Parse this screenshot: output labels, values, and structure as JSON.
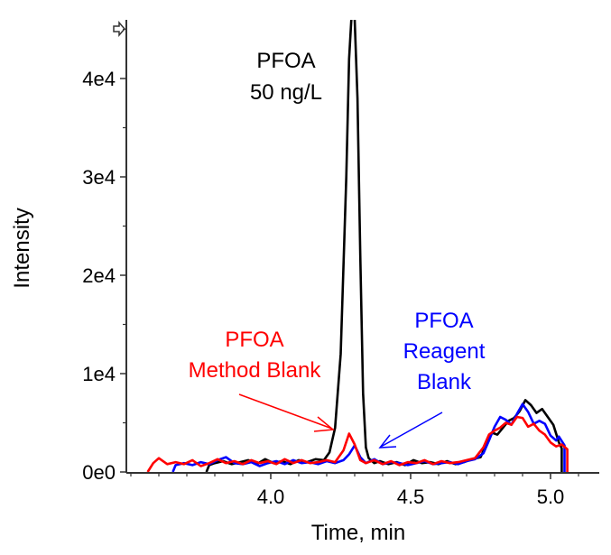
{
  "chart_data": {
    "type": "line",
    "title": "",
    "xlabel": "Time, min",
    "ylabel": "Intensity",
    "xlim": [
      3.5,
      5.17
    ],
    "ylim": [
      0,
      46000
    ],
    "x_ticks": [
      4.0,
      4.5,
      5.0
    ],
    "x_tick_labels": [
      "4.0",
      "4.5",
      "5.0"
    ],
    "x_minor_step": 0.1,
    "y_ticks": [
      0,
      10000,
      20000,
      30000,
      40000
    ],
    "y_tick_labels": [
      "0e0",
      "1e4",
      "2e4",
      "3e4",
      "4e4"
    ],
    "y_minor_step": 5000,
    "grid": false,
    "series": [
      {
        "name": "PFOA 50 ng/L",
        "color": "#000000",
        "x": [
          3.77,
          3.78,
          3.8,
          3.83,
          3.86,
          3.89,
          3.92,
          3.95,
          3.98,
          4.01,
          4.04,
          4.07,
          4.1,
          4.13,
          4.16,
          4.19,
          4.21,
          4.23,
          4.25,
          4.27,
          4.28,
          4.29,
          4.3,
          4.31,
          4.32,
          4.33,
          4.34,
          4.35,
          4.37,
          4.39,
          4.42,
          4.45,
          4.48,
          4.51,
          4.54,
          4.57,
          4.6,
          4.63,
          4.66,
          4.69,
          4.72,
          4.75,
          4.77,
          4.79,
          4.81,
          4.83,
          4.85,
          4.87,
          4.89,
          4.91,
          4.93,
          4.95,
          4.97,
          4.99,
          5.01,
          5.03,
          5.04,
          5.04
        ],
        "y": [
          0,
          700,
          900,
          1100,
          800,
          1000,
          1200,
          800,
          1300,
          900,
          1100,
          800,
          1200,
          1000,
          1300,
          1200,
          2000,
          4500,
          12000,
          30000,
          42000,
          47000,
          46000,
          38000,
          22000,
          8000,
          2500,
          1400,
          900,
          1100,
          800,
          1000,
          700,
          1200,
          900,
          1000,
          800,
          1100,
          800,
          1000,
          1300,
          1500,
          2800,
          4000,
          3800,
          4500,
          5200,
          5500,
          6200,
          7300,
          6800,
          6000,
          6400,
          5600,
          4800,
          3000,
          2400,
          0
        ]
      },
      {
        "name": "PFOA Method Blank",
        "color": "#ff0000",
        "x": [
          3.56,
          3.58,
          3.6,
          3.63,
          3.66,
          3.69,
          3.72,
          3.75,
          3.78,
          3.81,
          3.84,
          3.87,
          3.9,
          3.93,
          3.96,
          3.99,
          4.02,
          4.05,
          4.08,
          4.11,
          4.14,
          4.17,
          4.2,
          4.23,
          4.26,
          4.28,
          4.3,
          4.32,
          4.34,
          4.37,
          4.4,
          4.43,
          4.46,
          4.49,
          4.52,
          4.55,
          4.58,
          4.61,
          4.64,
          4.67,
          4.7,
          4.73,
          4.76,
          4.78,
          4.8,
          4.82,
          4.84,
          4.86,
          4.88,
          4.9,
          4.92,
          4.94,
          4.96,
          4.98,
          5.0,
          5.02,
          5.04,
          5.06,
          5.06
        ],
        "y": [
          0,
          900,
          1400,
          800,
          1000,
          800,
          1200,
          600,
          900,
          1300,
          900,
          1100,
          800,
          1200,
          900,
          1100,
          800,
          1300,
          900,
          1200,
          900,
          1000,
          1200,
          1000,
          2200,
          3900,
          2800,
          1200,
          900,
          1200,
          800,
          1100,
          700,
          1000,
          900,
          1200,
          800,
          1100,
          900,
          1000,
          1200,
          1400,
          2500,
          3800,
          4200,
          4500,
          5000,
          4800,
          5600,
          5500,
          4600,
          4900,
          4200,
          3800,
          3000,
          2600,
          2800,
          2300,
          0
        ]
      },
      {
        "name": "PFOA Reagent Blank",
        "color": "#0000ff",
        "x": [
          3.65,
          3.66,
          3.69,
          3.72,
          3.75,
          3.78,
          3.81,
          3.84,
          3.87,
          3.9,
          3.93,
          3.96,
          3.99,
          4.02,
          4.05,
          4.08,
          4.11,
          4.14,
          4.17,
          4.2,
          4.23,
          4.26,
          4.28,
          4.3,
          4.32,
          4.34,
          4.37,
          4.4,
          4.43,
          4.46,
          4.49,
          4.52,
          4.55,
          4.58,
          4.61,
          4.64,
          4.67,
          4.7,
          4.73,
          4.76,
          4.78,
          4.8,
          4.82,
          4.84,
          4.86,
          4.88,
          4.9,
          4.92,
          4.94,
          4.96,
          4.98,
          5.0,
          5.02,
          5.03,
          5.05,
          5.05
        ],
        "y": [
          0,
          700,
          900,
          700,
          1000,
          800,
          1200,
          1500,
          900,
          800,
          1000,
          600,
          900,
          1100,
          800,
          1200,
          900,
          1000,
          800,
          1100,
          900,
          1200,
          1800,
          2700,
          1500,
          900,
          1300,
          800,
          1000,
          900,
          700,
          900,
          1100,
          800,
          900,
          1000,
          800,
          1100,
          1300,
          1900,
          3200,
          4600,
          5600,
          5300,
          4800,
          5900,
          6900,
          6100,
          4900,
          5200,
          4900,
          3700,
          3200,
          3600,
          2700,
          0
        ]
      }
    ],
    "annotations": [
      {
        "text_lines": [
          "PFOA",
          "50 ng/L"
        ],
        "color": "#000000",
        "points_to": "PFOA 50 ng/L peak"
      },
      {
        "text_lines": [
          "PFOA",
          "Method Blank"
        ],
        "color": "#ff0000",
        "points_to": "method blank peak at 4.3 min",
        "arrow": true
      },
      {
        "text_lines": [
          "PFOA",
          "Reagent",
          "Blank"
        ],
        "color": "#0000ff",
        "points_to": "reagent blank peak at 4.3 min",
        "arrow": true
      }
    ],
    "y_axis_marker": "scale-arrow"
  }
}
